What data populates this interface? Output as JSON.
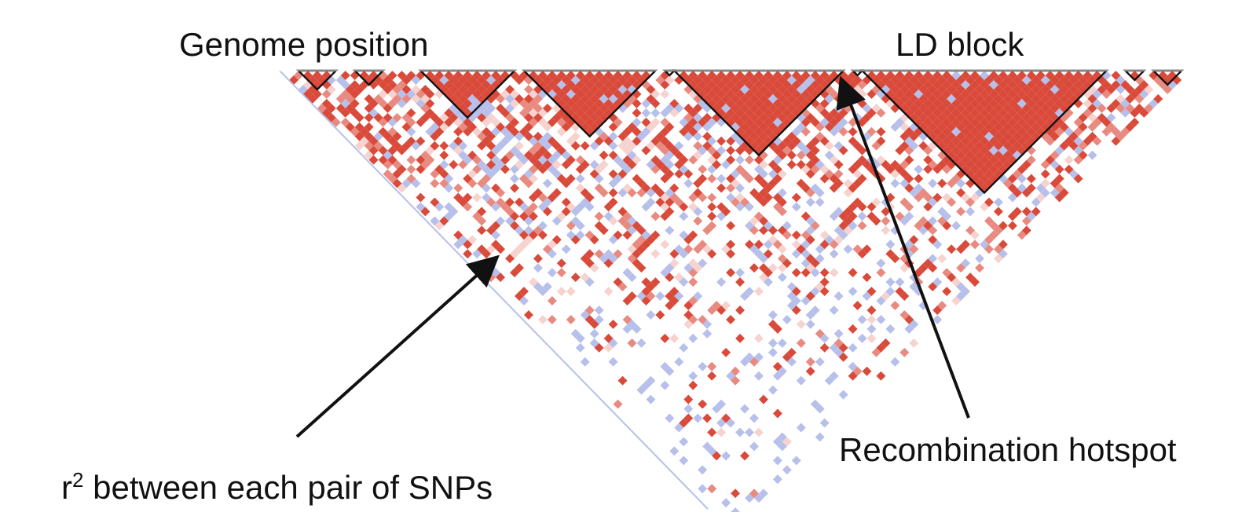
{
  "labels": {
    "genome_position": "Genome position",
    "ld_block": "LD block",
    "recombination_hotspot": "Recombination hotspot",
    "r2_base": "r",
    "r2_exponent": "2",
    "r2_rest": " between each pair of SNPs"
  },
  "colors": {
    "high_ld": "#d94a3a",
    "mid_ld": "#e88a80",
    "low_ld": "#f6d3cf",
    "low_lod": "#b7c0ea",
    "block_outline": "#111111",
    "arrow": "#111111"
  },
  "ld_blocks_snp_ranges": [
    [
      2,
      5
    ],
    [
      8,
      10
    ],
    [
      15,
      24
    ],
    [
      26,
      39
    ],
    [
      41,
      41
    ],
    [
      42,
      59
    ],
    [
      61,
      61
    ],
    [
      62,
      87
    ],
    [
      90,
      91
    ],
    [
      93,
      95
    ]
  ],
  "snp_count": 97
}
